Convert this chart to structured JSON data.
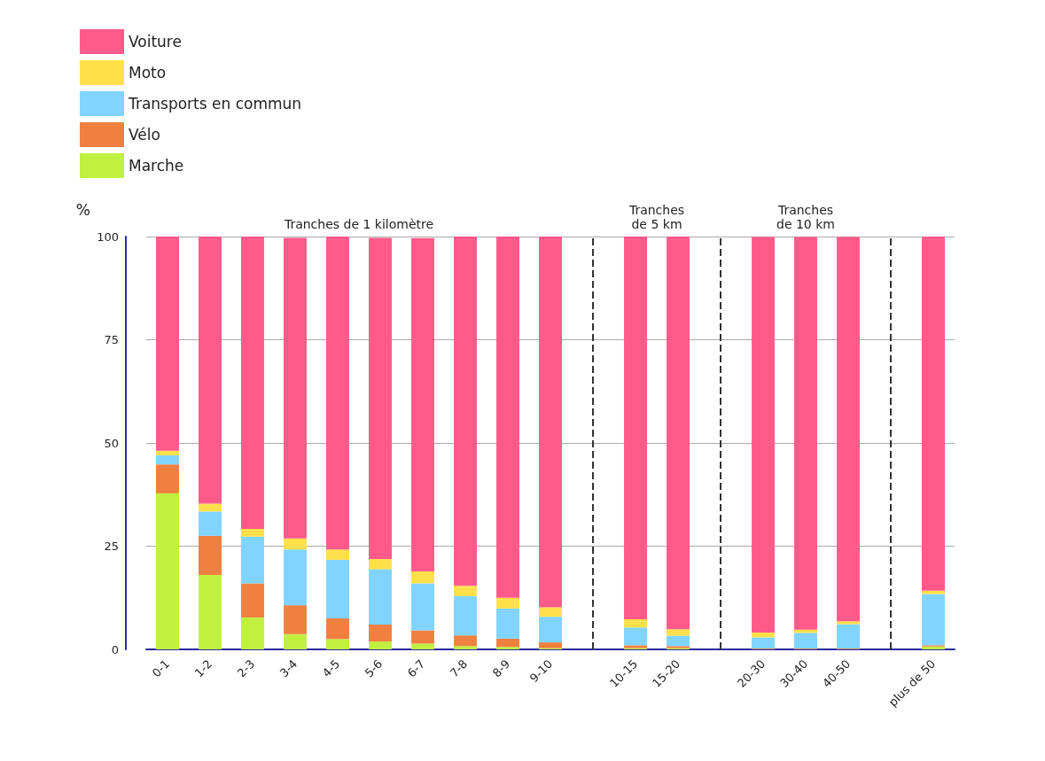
{
  "chart_data": {
    "type": "bar",
    "stacked": true,
    "ylabel": "%",
    "categories": [
      "0-1",
      "1-2",
      "2-3",
      "3-4",
      "4-5",
      "5-6",
      "6-7",
      "7-8",
      "8-9",
      "9-10",
      null,
      "10-15",
      "15-20",
      null,
      "20-30",
      "30-40",
      "40-50",
      null,
      "plus de 50"
    ],
    "series": [
      {
        "name": "Marche",
        "color": "#c0f040",
        "values": [
          37.8,
          18.0,
          7.7,
          3.7,
          2.5,
          1.9,
          1.4,
          0.8,
          0.6,
          0.3,
          null,
          0.3,
          0.3,
          null,
          null,
          null,
          null,
          null,
          0.7
        ]
      },
      {
        "name": "Vélo",
        "color": "#f08040",
        "values": [
          7.0,
          9.5,
          8.3,
          7.0,
          5.0,
          4.1,
          3.2,
          2.6,
          2.0,
          1.4,
          null,
          0.7,
          0.5,
          null,
          0.2,
          0.2,
          0.2,
          null,
          0.3
        ]
      },
      {
        "name": "Transports en commun",
        "color": "#80d4ff",
        "values": [
          2.2,
          5.9,
          11.3,
          13.5,
          14.2,
          13.4,
          11.4,
          9.5,
          7.3,
          6.2,
          null,
          4.3,
          2.5,
          null,
          2.7,
          3.8,
          5.9,
          null,
          12.4
        ]
      },
      {
        "name": "Moto",
        "color": "#ffe04a",
        "values": [
          1.1,
          1.9,
          1.9,
          2.7,
          2.5,
          2.5,
          2.9,
          2.5,
          2.6,
          2.3,
          null,
          2.0,
          1.6,
          null,
          1.2,
          0.8,
          0.7,
          null,
          0.8
        ]
      },
      {
        "name": "Voiture",
        "color": "#ff5a8a",
        "values": [
          51.9,
          64.7,
          70.8,
          72.8,
          75.8,
          77.8,
          80.7,
          84.6,
          87.5,
          89.8,
          null,
          92.7,
          95.1,
          null,
          95.8,
          95.1,
          93.1,
          null,
          85.8
        ]
      }
    ],
    "ylim": [
      0,
      100
    ],
    "yticks": [
      0,
      25,
      50,
      75,
      100
    ],
    "grid": "y",
    "legend": "top left",
    "annotations": [
      "Tranches de 1 kilomètre",
      "Tranches\nde 5 km",
      "Tranches\nde 10 km"
    ]
  }
}
